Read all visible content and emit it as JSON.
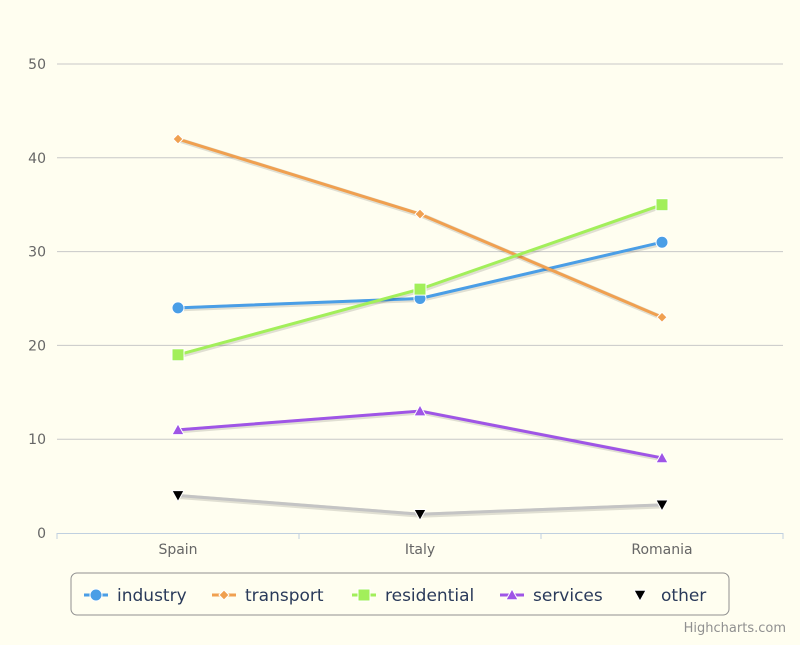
{
  "chart_data": {
    "type": "line",
    "categories": [
      "Spain",
      "Italy",
      "Romania"
    ],
    "yticks": [
      "0",
      "10",
      "20",
      "30",
      "40",
      "50"
    ],
    "ylim": [
      0,
      50
    ],
    "grid": true,
    "legend_position": "bottom",
    "series": [
      {
        "name": "industry",
        "values": [
          24,
          25,
          31
        ],
        "color": "#4a9ee6",
        "marker": "circle"
      },
      {
        "name": "transport",
        "values": [
          42,
          34,
          23
        ],
        "color": "#f0a050",
        "marker": "diamond"
      },
      {
        "name": "residential",
        "values": [
          19,
          26,
          35
        ],
        "color": "#a2ef5a",
        "marker": "square"
      },
      {
        "name": "services",
        "values": [
          11,
          13,
          8
        ],
        "color": "#9f55e6",
        "marker": "triangle"
      },
      {
        "name": "other",
        "values": [
          4,
          2,
          3
        ],
        "color": "#000000",
        "marker": "triangle-down"
      }
    ]
  },
  "credits": "Highcharts.com"
}
